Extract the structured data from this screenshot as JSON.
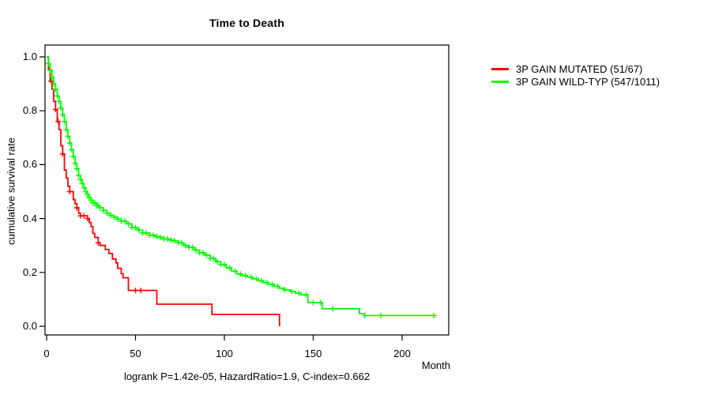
{
  "chart_data": {
    "type": "line",
    "subtype": "kaplan-meier-step-curves",
    "title": "Time to Death",
    "xlabel": "Month",
    "ylabel": "cumulative survival rate",
    "caption": "logrank P=1.42e-05, HazardRatio=1.9, C-index=0.662",
    "stats": {
      "logrank_p": "1.42e-05",
      "hazard_ratio": "1.9",
      "c_index": "0.662"
    },
    "xlim": [
      0,
      227
    ],
    "ylim": [
      0.0,
      1.0
    ],
    "x_ticks": [
      0,
      50,
      100,
      150,
      200
    ],
    "x_tick_labels": [
      "0",
      "50",
      "100",
      "150",
      "200"
    ],
    "y_ticks": [
      1.0,
      0.8,
      0.6,
      0.4,
      0.2,
      0.0
    ],
    "y_tick_labels": [
      "1.0",
      "0.8",
      "0.6",
      "0.4",
      "0.2",
      "0.0"
    ],
    "grid": false,
    "legend_position": "right-outside",
    "series": [
      {
        "name": "mutated",
        "label": "3P GAIN MUTATED (51/67)",
        "events": "51/67",
        "color": "#ff0000",
        "steps": [
          [
            0,
            1.0
          ],
          [
            1,
            0.955
          ],
          [
            2,
            0.91
          ],
          [
            3,
            0.88
          ],
          [
            4,
            0.835
          ],
          [
            5,
            0.805
          ],
          [
            6,
            0.76
          ],
          [
            7,
            0.73
          ],
          [
            8,
            0.67
          ],
          [
            9,
            0.64
          ],
          [
            10,
            0.58
          ],
          [
            11,
            0.55
          ],
          [
            12,
            0.52
          ],
          [
            13,
            0.5
          ],
          [
            15,
            0.47
          ],
          [
            16,
            0.455
          ],
          [
            17,
            0.44
          ],
          [
            18,
            0.42
          ],
          [
            19,
            0.41
          ],
          [
            23,
            0.4
          ],
          [
            24,
            0.385
          ],
          [
            25,
            0.37
          ],
          [
            26,
            0.345
          ],
          [
            27,
            0.33
          ],
          [
            29,
            0.31
          ],
          [
            30,
            0.3
          ],
          [
            33,
            0.285
          ],
          [
            35,
            0.27
          ],
          [
            37,
            0.25
          ],
          [
            39,
            0.235
          ],
          [
            40,
            0.215
          ],
          [
            42,
            0.195
          ],
          [
            43,
            0.18
          ],
          [
            46,
            0.133
          ],
          [
            62,
            0.082
          ],
          [
            93,
            0.044
          ],
          [
            131,
            0.0
          ]
        ],
        "censor_months": [
          2.5,
          5,
          6.5,
          9,
          13,
          17,
          19,
          21,
          23,
          29,
          50,
          53
        ]
      },
      {
        "name": "wild-typ",
        "label": "3P GAIN WILD-TYP (547/1011)",
        "events": "547/1011",
        "color": "#00ff00",
        "steps": [
          [
            0,
            1.0
          ],
          [
            1,
            0.975
          ],
          [
            2,
            0.95
          ],
          [
            3,
            0.925
          ],
          [
            4,
            0.9
          ],
          [
            5,
            0.88
          ],
          [
            6,
            0.855
          ],
          [
            7,
            0.835
          ],
          [
            8,
            0.81
          ],
          [
            9,
            0.785
          ],
          [
            10,
            0.76
          ],
          [
            11,
            0.73
          ],
          [
            12,
            0.705
          ],
          [
            13,
            0.68
          ],
          [
            14,
            0.655
          ],
          [
            15,
            0.63
          ],
          [
            16,
            0.605
          ],
          [
            17,
            0.585
          ],
          [
            18,
            0.56
          ],
          [
            19,
            0.545
          ],
          [
            20,
            0.53
          ],
          [
            21,
            0.515
          ],
          [
            22,
            0.5
          ],
          [
            23,
            0.49
          ],
          [
            24,
            0.478
          ],
          [
            25,
            0.468
          ],
          [
            26,
            0.458
          ],
          [
            28,
            0.448
          ],
          [
            30,
            0.44
          ],
          [
            32,
            0.43
          ],
          [
            34,
            0.42
          ],
          [
            36,
            0.412
          ],
          [
            38,
            0.405
          ],
          [
            40,
            0.398
          ],
          [
            42,
            0.39
          ],
          [
            45,
            0.38
          ],
          [
            48,
            0.367
          ],
          [
            51,
            0.357
          ],
          [
            54,
            0.346
          ],
          [
            58,
            0.338
          ],
          [
            61,
            0.333
          ],
          [
            63,
            0.33
          ],
          [
            66,
            0.324
          ],
          [
            69,
            0.32
          ],
          [
            72,
            0.317
          ],
          [
            74,
            0.31
          ],
          [
            77,
            0.3
          ],
          [
            80,
            0.293
          ],
          [
            83,
            0.283
          ],
          [
            86,
            0.273
          ],
          [
            89,
            0.264
          ],
          [
            92,
            0.252
          ],
          [
            95,
            0.24
          ],
          [
            98,
            0.229
          ],
          [
            101,
            0.217
          ],
          [
            104,
            0.205
          ],
          [
            107,
            0.194
          ],
          [
            110,
            0.188
          ],
          [
            113,
            0.182
          ],
          [
            116,
            0.176
          ],
          [
            119,
            0.169
          ],
          [
            122,
            0.162
          ],
          [
            125,
            0.155
          ],
          [
            128,
            0.148
          ],
          [
            131,
            0.141
          ],
          [
            134,
            0.135
          ],
          [
            137,
            0.129
          ],
          [
            140,
            0.123
          ],
          [
            143,
            0.117
          ],
          [
            147,
            0.088
          ],
          [
            155,
            0.065
          ],
          [
            176,
            0.047
          ],
          [
            179,
            0.04
          ],
          [
            218,
            0.04
          ]
        ],
        "censor_months": [
          1,
          2,
          3,
          4,
          5,
          6,
          7,
          8,
          9,
          10,
          11,
          12,
          13,
          14,
          15,
          16,
          17,
          18,
          19,
          20,
          21,
          22,
          23,
          24,
          25,
          26,
          27,
          28,
          29,
          30,
          32,
          34,
          36,
          38,
          40,
          42,
          44,
          46,
          48,
          50,
          52,
          54,
          56,
          58,
          60,
          62,
          64,
          66,
          68,
          70,
          72,
          74,
          76,
          78,
          80,
          82,
          84,
          86,
          88,
          90,
          92,
          94,
          96,
          98,
          100,
          103,
          106,
          109,
          112,
          115,
          118,
          121,
          124,
          127,
          130,
          134,
          138,
          142,
          146,
          150,
          154,
          161,
          179,
          188,
          218
        ]
      }
    ]
  }
}
